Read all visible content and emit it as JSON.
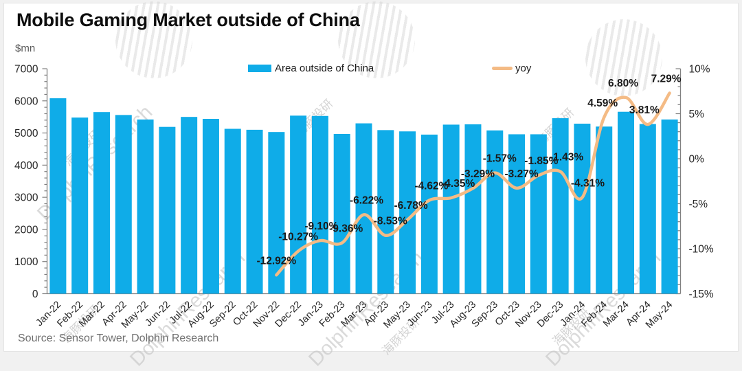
{
  "header": {
    "title": "Mobile Gaming Market outside of China",
    "unit_label": "$mn"
  },
  "legend": {
    "bars_label": "Area outside of China",
    "line_label": "yoy"
  },
  "source_text": "Source: Sensor Tower, Dolphin Research",
  "watermark": {
    "text": "DolphinResearch",
    "cn_text": "海豚投研"
  },
  "colors": {
    "bar": "#0FACE8",
    "line": "#F4BB85",
    "axis": "#808080",
    "label": "#1a1a1a",
    "tick_text": "#262626"
  },
  "chart_data": {
    "type": "bar",
    "title": "Mobile Gaming Market outside of China",
    "xlabel": "",
    "ylabel": "$mn",
    "categories": [
      "Jan-22",
      "Feb-22",
      "Mar-22",
      "Apr-22",
      "May-22",
      "Jun-22",
      "Jul-22",
      "Aug-22",
      "Sep-22",
      "Oct-22",
      "Nov-22",
      "Dec-22",
      "Jan-23",
      "Feb-23",
      "Mar-23",
      "Apr-23",
      "May-23",
      "Jun-23",
      "Jul-23",
      "Aug-23",
      "Sep-23",
      "Oct-23",
      "Nov-23",
      "Dec-23",
      "Jan-24",
      "Feb-24",
      "Mar-24",
      "Apr-24",
      "May-24"
    ],
    "series": [
      {
        "name": "Area outside of China",
        "type": "bar",
        "axis": "left",
        "unit": "$mn",
        "values": [
          6080,
          5480,
          5650,
          5560,
          5420,
          5190,
          5500,
          5440,
          5130,
          5100,
          5030,
          5540,
          5530,
          4970,
          5300,
          5090,
          5050,
          4950,
          5260,
          5270,
          5080,
          4960,
          4960,
          5460,
          5290,
          5200,
          5660,
          5280,
          5420
        ]
      },
      {
        "name": "yoy",
        "type": "line",
        "axis": "right",
        "unit": "%",
        "values": [
          null,
          null,
          null,
          null,
          null,
          null,
          null,
          null,
          null,
          null,
          -12.92,
          -10.27,
          -9.1,
          -9.36,
          -6.22,
          -8.53,
          -6.78,
          -4.62,
          -4.35,
          -3.29,
          -1.57,
          -3.27,
          -1.85,
          -1.43,
          -4.31,
          4.59,
          6.8,
          3.81,
          7.29
        ],
        "labels": [
          "-12.92%",
          "-10.27%",
          "-9.10%",
          "-9.36%",
          "-6.22%",
          "-8.53%",
          "-6.78%",
          "-4.62%",
          "-4.35%",
          "-3.29%",
          "-1.57%",
          "-3.27%",
          "-1.85%",
          "-1.43%",
          "-4.31%",
          "4.59%",
          "6.80%",
          "3.81%",
          "7.29%"
        ]
      }
    ],
    "left_axis": {
      "label": "$mn",
      "min": 0,
      "max": 7000,
      "ticks": [
        "7000",
        "6000",
        "5000",
        "4000",
        "3000",
        "2000",
        "1000",
        "0"
      ]
    },
    "right_axis": {
      "min": -15,
      "max": 10,
      "ticks": [
        "10%",
        "5%",
        "0%",
        "-5%",
        "-10%",
        "-15%"
      ]
    },
    "grid": false,
    "legend_position": "top"
  }
}
